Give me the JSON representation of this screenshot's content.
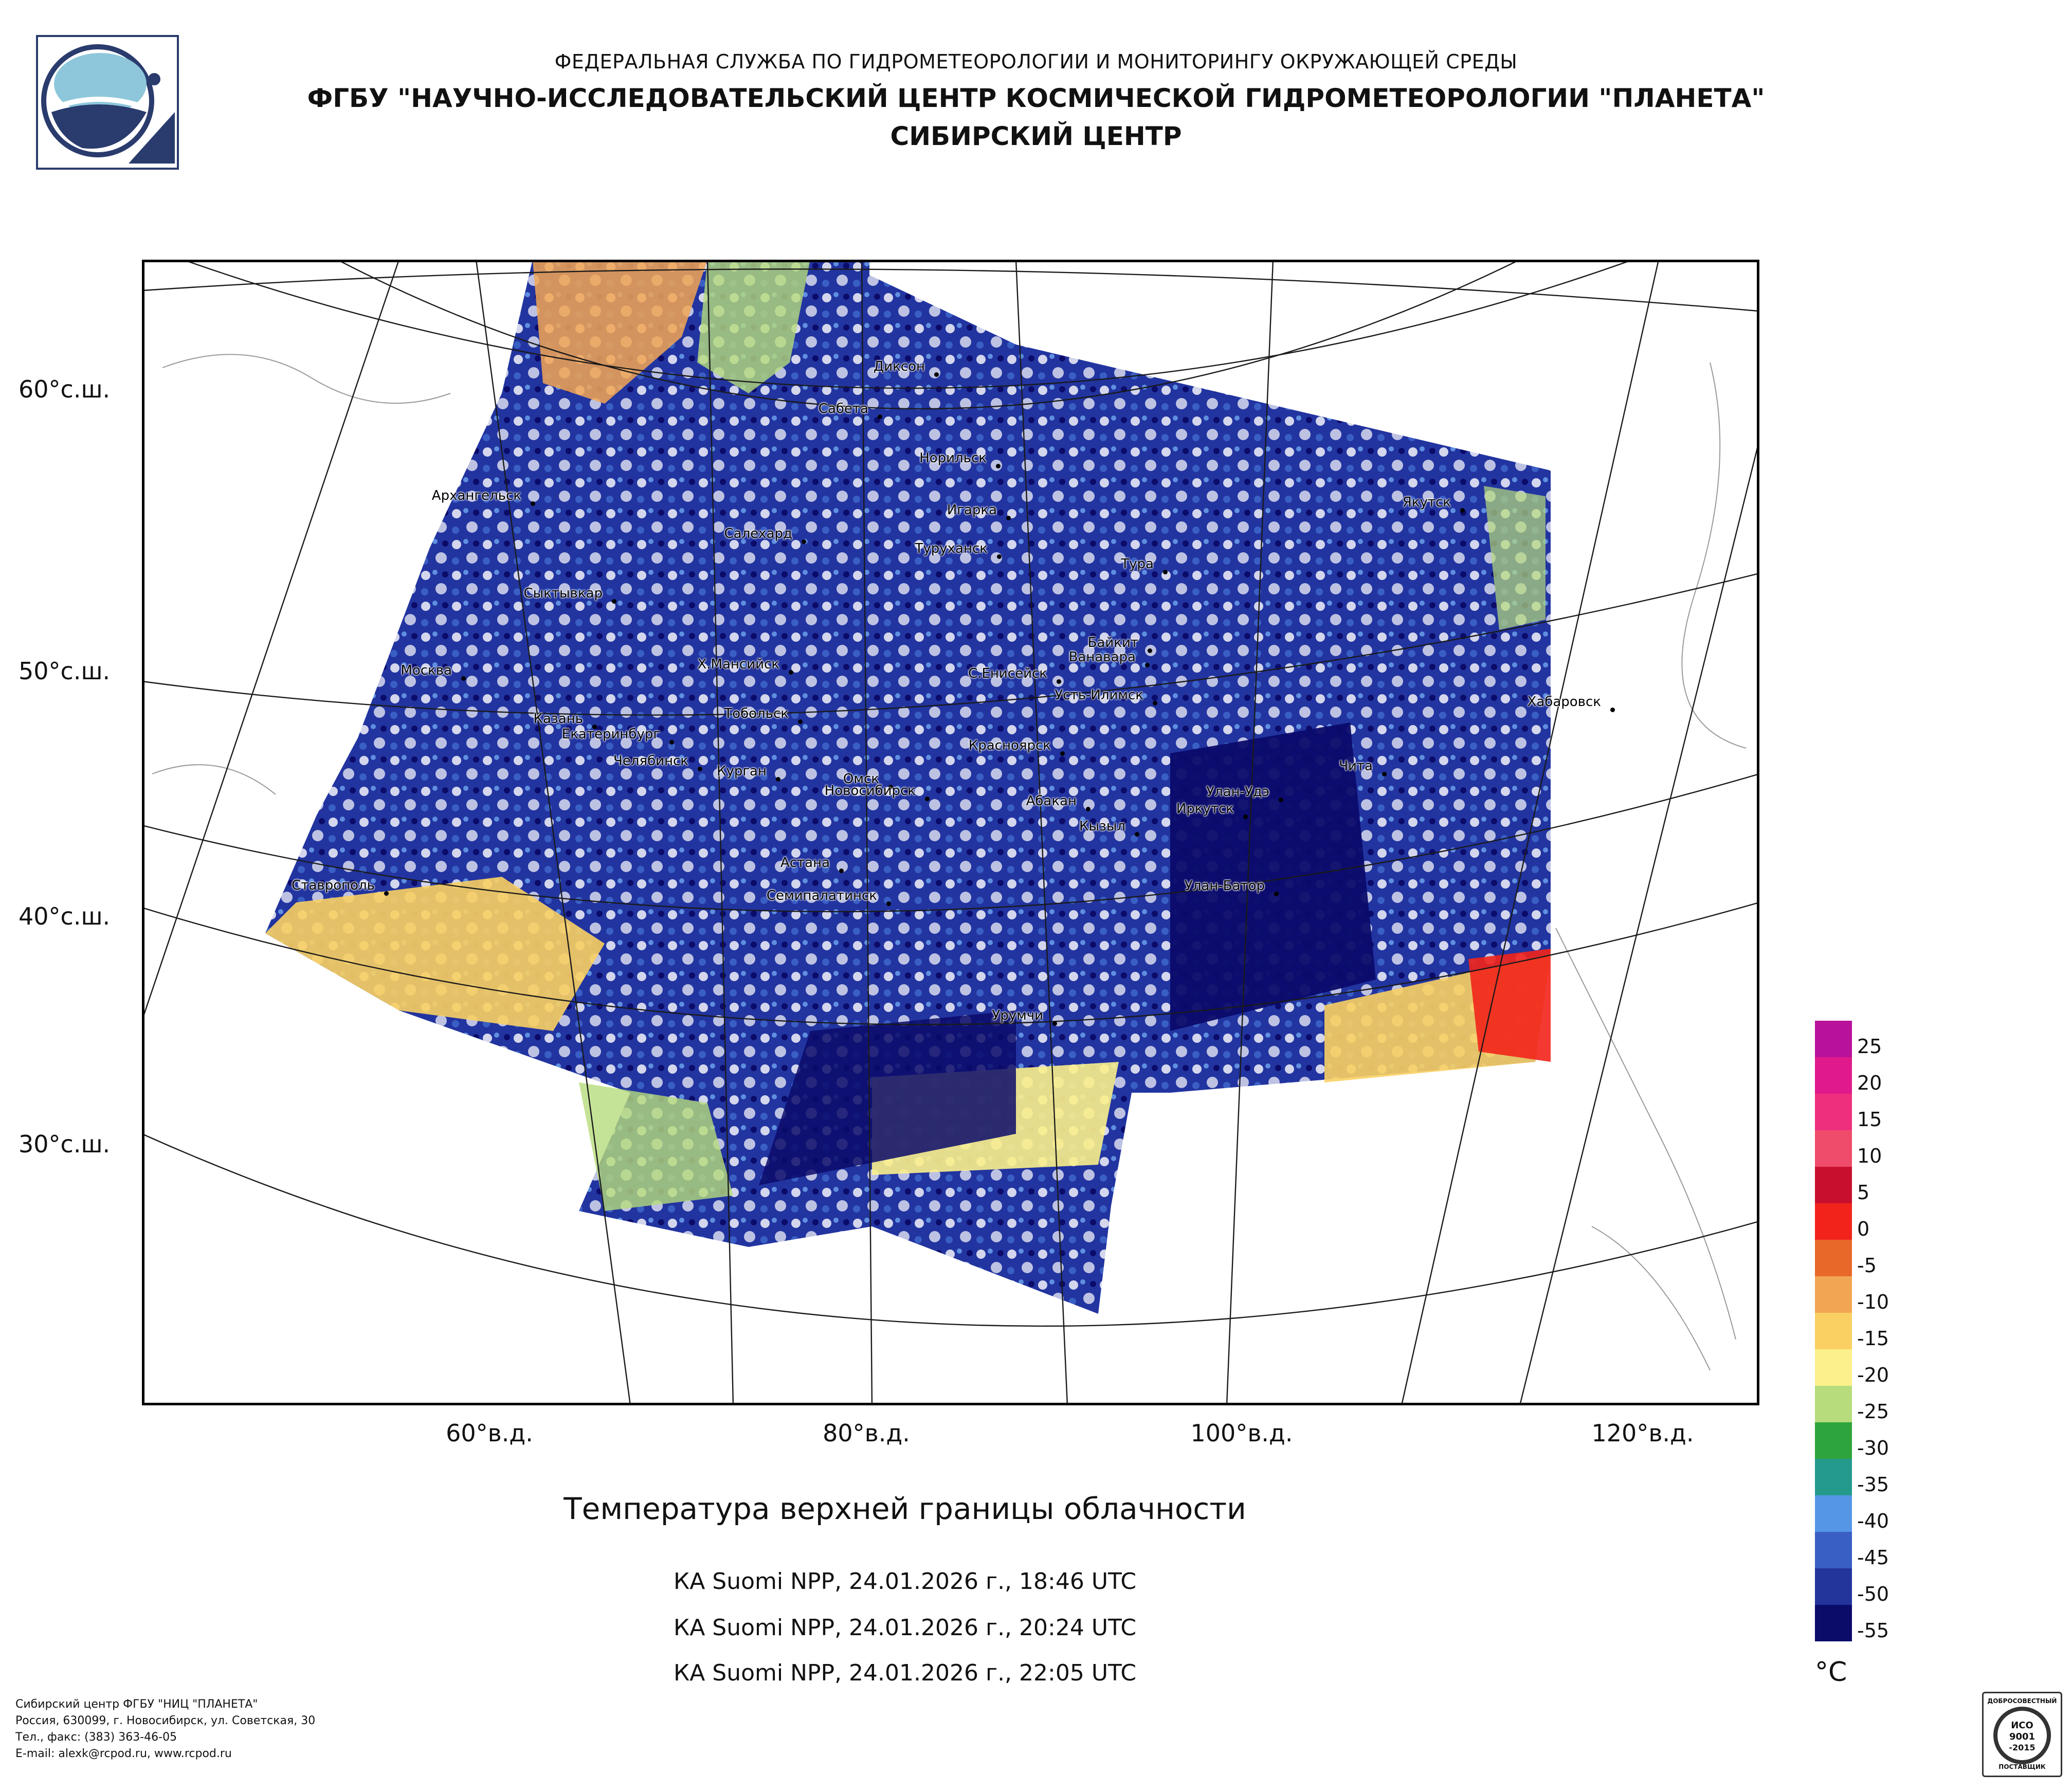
{
  "header": {
    "line1": "ФЕДЕРАЛЬНАЯ СЛУЖБА ПО ГИДРОМЕТЕОРОЛОГИИ И МОНИТОРИНГУ ОКРУЖАЮЩЕЙ СРЕДЫ",
    "line2": "ФГБУ \"НАУЧНО-ИССЛЕДОВАТЕЛЬСКИЙ ЦЕНТР КОСМИЧЕСКОЙ ГИДРОМЕТЕОРОЛОГИИ \"ПЛАНЕТА\"",
    "line3": "СИБИРСКИЙ ЦЕНТР"
  },
  "map": {
    "lat_labels": [
      "60°с.ш.",
      "50°с.ш.",
      "40°с.ш.",
      "30°с.ш."
    ],
    "lon_labels": [
      "60°в.д.",
      "80°в.д.",
      "100°в.д.",
      "120°в.д."
    ],
    "cities": [
      "Диксон",
      "Сабета",
      "Норильск",
      "Архангельск",
      "Игарка",
      "Салехард",
      "Туруханск",
      "Якутск",
      "Тура",
      "Сыктывкар",
      "Байкит",
      "Ванавара",
      "Москва",
      "Х.Мансийск",
      "С.Енисейск",
      "Усть-Илимск",
      "Казань",
      "Тобольск",
      "Хабаровск",
      "Екатеринбург",
      "Красноярск",
      "Чита",
      "Челябинск",
      "Курган",
      "Омск",
      "Новосибирск",
      "Улан-Удэ",
      "Абакан",
      "Иркутск",
      "Кызыл",
      "Ставрополь",
      "Астана",
      "Улан-Батор",
      "Семипалатинск",
      "Урумчи"
    ]
  },
  "product": {
    "title": "Температура верхней границы облачности",
    "passes": [
      "КА Suomi NPP, 24.01.2026 г., 18:46 UTC",
      "КА Suomi NPP, 24.01.2026 г., 20:24 UTC",
      "КА Suomi NPP, 24.01.2026 г., 22:05 UTC"
    ]
  },
  "legend": {
    "unit": "°C",
    "labels": [
      "25",
      "20",
      "15",
      "10",
      "5",
      "0",
      "-5",
      "-10",
      "-15",
      "-20",
      "-25",
      "-30",
      "-35",
      "-40",
      "-45",
      "-50",
      "-55"
    ],
    "colors": [
      "#b8119a",
      "#e01a8c",
      "#ee2f7e",
      "#ef4c6b",
      "#c8102e",
      "#f2231b",
      "#e8682a",
      "#f2a653",
      "#fad063",
      "#fbf08c",
      "#b6dc7c",
      "#2ea43c",
      "#239a8c",
      "#5597e6",
      "#3a5fc4",
      "#23349b",
      "#0b0b6a"
    ]
  },
  "footer": {
    "lines": [
      "Сибирский центр ФГБУ \"НИЦ \"ПЛАНЕТА\"",
      "Россия, 630099, г. Новосибирск, ул. Советская, 30",
      "Тел., факс: (383) 363-46-05",
      "E-mail: alexk@rcpod.ru, www.rcpod.ru"
    ],
    "badge": {
      "arc": "ДОБРОСОВЕСТНЫЙ",
      "iso": "ИСО",
      "num": "9001",
      "year": "-2015",
      "bottom": "ПОСТАВЩИК"
    }
  }
}
